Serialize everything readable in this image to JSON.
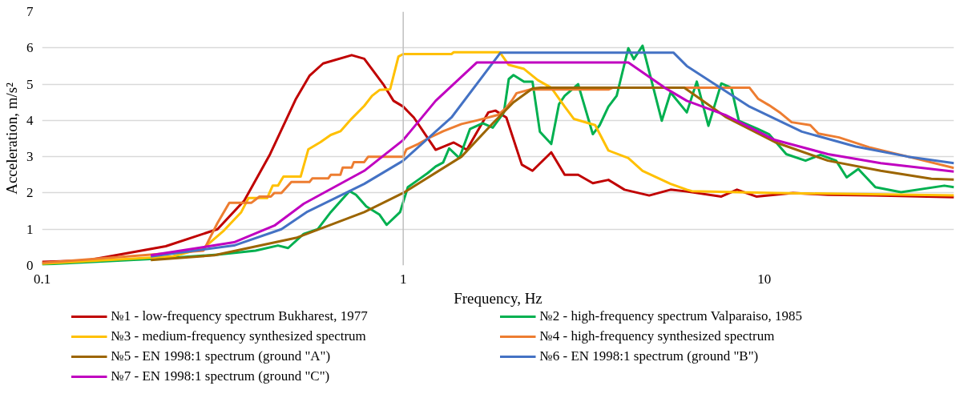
{
  "chart_data": {
    "type": "line",
    "xlabel": "Frequency, Hz",
    "ylabel": "Acceleration, m/s²",
    "log": "x",
    "xlim": [
      0.1,
      33.5
    ],
    "xticks": [
      0.1,
      1,
      10
    ],
    "ylim": [
      0,
      7
    ],
    "yticks": [
      0,
      1,
      2,
      3,
      4,
      5,
      6,
      7
    ],
    "grid": "y",
    "legend": "bottom",
    "marker": "none",
    "line_style": "solid",
    "ref_lines": [
      {
        "axis": "x",
        "value": 1,
        "color": "#bfbfbf"
      }
    ],
    "series": [
      {
        "name": "№1 - low-frequency spectrum Bukharest, 1977",
        "color": "#c00000",
        "x": [
          0.1,
          0.133,
          0.22,
          0.306,
          0.363,
          0.428,
          0.505,
          0.55,
          0.6,
          0.72,
          0.78,
          0.88,
          0.94,
          1.0,
          1.07,
          1.23,
          1.38,
          1.5,
          1.72,
          1.8,
          1.93,
          2.13,
          2.28,
          2.57,
          2.8,
          3.05,
          3.35,
          3.7,
          4.1,
          4.8,
          5.5,
          6.1,
          7.6,
          8.4,
          9.5,
          12,
          15,
          20,
          33.5
        ],
        "values": [
          0.1,
          0.14,
          0.53,
          1.0,
          1.79,
          3.07,
          4.6,
          5.23,
          5.57,
          5.8,
          5.7,
          5.0,
          4.54,
          4.38,
          4.08,
          3.19,
          3.39,
          3.19,
          4.22,
          4.27,
          4.08,
          2.78,
          2.61,
          3.12,
          2.5,
          2.5,
          2.27,
          2.36,
          2.09,
          1.93,
          2.09,
          2.04,
          1.9,
          2.09,
          1.9,
          2.0,
          1.95,
          1.93,
          1.88
        ]
      },
      {
        "name": "№2 - high-frequency spectrum Valparaiso, 1985",
        "color": "#00b050",
        "x": [
          0.1,
          0.22,
          0.306,
          0.39,
          0.45,
          0.48,
          0.53,
          0.58,
          0.63,
          0.71,
          0.74,
          0.79,
          0.86,
          0.9,
          0.98,
          1.03,
          1.1,
          1.17,
          1.23,
          1.29,
          1.34,
          1.43,
          1.53,
          1.66,
          1.77,
          1.9,
          1.96,
          2.02,
          2.16,
          2.28,
          2.39,
          2.57,
          2.7,
          2.8,
          3.05,
          3.35,
          3.5,
          3.7,
          3.9,
          4.2,
          4.35,
          4.6,
          5.2,
          5.5,
          6.1,
          6.5,
          7.0,
          7.6,
          8.1,
          8.5,
          9.6,
          10.3,
          11.5,
          13,
          14.3,
          15.8,
          16.9,
          18.2,
          20.3,
          23.9,
          31.5,
          33.5
        ],
        "values": [
          0.03,
          0.2,
          0.3,
          0.41,
          0.55,
          0.48,
          0.87,
          1.0,
          1.47,
          2.05,
          1.95,
          1.63,
          1.4,
          1.12,
          1.47,
          2.16,
          2.36,
          2.55,
          2.73,
          2.84,
          3.23,
          2.96,
          3.76,
          3.92,
          3.8,
          4.22,
          5.14,
          5.25,
          5.07,
          5.07,
          3.69,
          3.35,
          4.45,
          4.68,
          5.0,
          3.62,
          3.87,
          4.38,
          4.68,
          5.99,
          5.69,
          6.06,
          3.99,
          4.77,
          4.22,
          5.07,
          3.85,
          5.02,
          4.9,
          3.99,
          3.76,
          3.62,
          3.07,
          2.89,
          3.05,
          2.89,
          2.43,
          2.66,
          2.16,
          2.02,
          2.2,
          2.16
        ]
      },
      {
        "name": "№3 - medium-frequency synthesized spectrum",
        "color": "#ffc000",
        "x": [
          0.1,
          0.23,
          0.28,
          0.317,
          0.356,
          0.373,
          0.42,
          0.435,
          0.45,
          0.466,
          0.52,
          0.546,
          0.59,
          0.63,
          0.67,
          0.72,
          0.78,
          0.82,
          0.86,
          0.92,
          0.97,
          1.0,
          1.36,
          1.38,
          1.85,
          1.96,
          2.16,
          2.36,
          2.57,
          2.8,
          2.97,
          3.4,
          3.7,
          4.2,
          4.6,
          5.5,
          6.1,
          6.3,
          10.7,
          33.5
        ],
        "values": [
          0.05,
          0.25,
          0.48,
          0.94,
          1.47,
          1.86,
          1.86,
          2.2,
          2.2,
          2.45,
          2.45,
          3.2,
          3.4,
          3.6,
          3.7,
          4.05,
          4.4,
          4.68,
          4.84,
          4.86,
          5.76,
          5.83,
          5.83,
          5.88,
          5.88,
          5.53,
          5.42,
          5.11,
          4.9,
          4.38,
          4.04,
          3.87,
          3.17,
          2.96,
          2.61,
          2.25,
          2.09,
          2.05,
          2.0,
          1.93
        ]
      },
      {
        "name": "№4 - high-frequency synthesized spectrum",
        "color": "#ed7d31",
        "x": [
          0.1,
          0.2,
          0.28,
          0.306,
          0.33,
          0.38,
          0.4,
          0.43,
          0.44,
          0.46,
          0.49,
          0.55,
          0.56,
          0.62,
          0.63,
          0.67,
          0.68,
          0.72,
          0.73,
          0.78,
          0.8,
          1.0,
          1.02,
          1.1,
          1.17,
          1.29,
          1.45,
          1.6,
          1.83,
          1.93,
          2.0,
          2.06,
          2.24,
          3.7,
          3.8,
          9.1,
          9.6,
          10.3,
          11.1,
          11.9,
          13.4,
          14.1,
          16.1,
          19.5,
          25,
          33.5
        ],
        "values": [
          0.07,
          0.3,
          0.41,
          1.17,
          1.73,
          1.73,
          1.9,
          1.9,
          2.0,
          2.0,
          2.3,
          2.3,
          2.4,
          2.4,
          2.5,
          2.5,
          2.7,
          2.7,
          2.85,
          2.85,
          3.0,
          3.0,
          3.2,
          3.35,
          3.5,
          3.7,
          3.9,
          4.0,
          4.15,
          4.35,
          4.55,
          4.75,
          4.85,
          4.85,
          4.9,
          4.9,
          4.6,
          4.42,
          4.2,
          3.95,
          3.87,
          3.64,
          3.53,
          3.26,
          3.0,
          2.69
        ]
      },
      {
        "name": "№5 - EN 1998:1 spectrum (ground \"A\")",
        "color": "#9c6500",
        "x": [
          0.2,
          0.3,
          0.505,
          0.78,
          1.0,
          1.45,
          1.77,
          2.02,
          2.28,
          2.4,
          6.0,
          7.8,
          10.7,
          15,
          21,
          29,
          33.5
        ],
        "values": [
          0.15,
          0.28,
          0.76,
          1.47,
          2.0,
          3.0,
          3.92,
          4.5,
          4.88,
          4.9,
          4.9,
          4.1,
          3.4,
          2.89,
          2.61,
          2.39,
          2.37
        ]
      },
      {
        "name": "№6 - EN 1998:1 spectrum (ground \"B\")",
        "color": "#4472c4",
        "x": [
          0.2,
          0.34,
          0.46,
          0.54,
          0.78,
          1.0,
          1.36,
          1.86,
          5.6,
          6.1,
          9.1,
          12.7,
          17.9,
          25,
          33.5
        ],
        "values": [
          0.25,
          0.55,
          1.0,
          1.47,
          2.25,
          2.89,
          4.08,
          5.87,
          5.87,
          5.5,
          4.38,
          3.69,
          3.28,
          3.0,
          2.82
        ]
      },
      {
        "name": "№7 - EN 1998:1 spectrum (ground \"C\")",
        "color": "#c000c0",
        "x": [
          0.2,
          0.34,
          0.44,
          0.53,
          0.78,
          1.0,
          1.23,
          1.6,
          4.2,
          5.3,
          6.1,
          7.8,
          10.7,
          15,
          21,
          33.5
        ],
        "values": [
          0.28,
          0.64,
          1.1,
          1.7,
          2.61,
          3.46,
          4.54,
          5.6,
          5.6,
          4.9,
          4.54,
          4.15,
          3.46,
          3.07,
          2.82,
          2.59
        ]
      }
    ]
  }
}
